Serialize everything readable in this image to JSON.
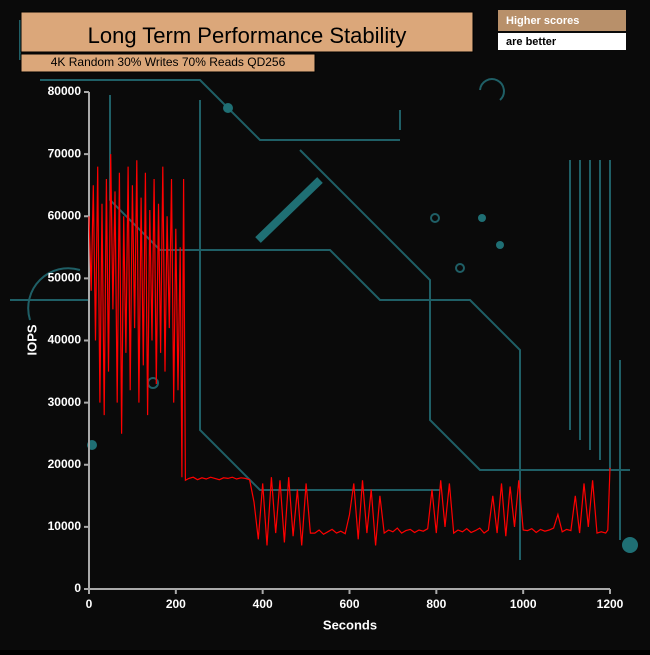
{
  "chart_data": {
    "type": "line",
    "title": "Long Term Performance Stability",
    "subtitle": "4K Random 30% Writes 70% Reads QD256",
    "annotations": [
      "Higher scores",
      "are better"
    ],
    "x_label": "Seconds",
    "y_label": "IOPS",
    "xlim": [
      0,
      1200
    ],
    "xticks": [
      0,
      200,
      400,
      600,
      800,
      1000,
      1200
    ],
    "ylim": [
      0,
      80000
    ],
    "yticks": [
      0,
      10000,
      20000,
      30000,
      40000,
      50000,
      60000,
      70000,
      80000
    ],
    "series": [
      {
        "name": "IOPS",
        "color": "#ff0000",
        "x": [
          0,
          5,
          10,
          15,
          20,
          25,
          30,
          35,
          40,
          45,
          50,
          55,
          60,
          65,
          70,
          75,
          80,
          85,
          90,
          95,
          100,
          105,
          110,
          115,
          120,
          125,
          130,
          135,
          140,
          145,
          150,
          155,
          160,
          165,
          170,
          175,
          180,
          185,
          190,
          195,
          200,
          205,
          210,
          214,
          218,
          222,
          230,
          240,
          250,
          260,
          270,
          280,
          290,
          300,
          310,
          320,
          330,
          340,
          350,
          360,
          370,
          380,
          390,
          400,
          410,
          420,
          430,
          440,
          450,
          460,
          470,
          480,
          490,
          500,
          510,
          520,
          530,
          540,
          550,
          560,
          570,
          580,
          590,
          600,
          610,
          620,
          630,
          640,
          650,
          660,
          670,
          680,
          690,
          700,
          710,
          720,
          730,
          740,
          750,
          760,
          770,
          780,
          790,
          800,
          810,
          820,
          830,
          840,
          850,
          860,
          870,
          880,
          890,
          900,
          910,
          920,
          930,
          940,
          950,
          960,
          970,
          980,
          990,
          1000,
          1010,
          1020,
          1030,
          1040,
          1050,
          1060,
          1070,
          1080,
          1090,
          1100,
          1110,
          1120,
          1130,
          1140,
          1150,
          1160,
          1170,
          1180,
          1190,
          1195,
          1200
        ],
        "values": [
          60000,
          48000,
          65000,
          40000,
          68000,
          30000,
          62000,
          28000,
          66000,
          35000,
          70000,
          45000,
          64000,
          30000,
          67000,
          25000,
          60000,
          38000,
          68000,
          32000,
          65000,
          42000,
          69000,
          30000,
          63000,
          36000,
          67000,
          28000,
          61000,
          40000,
          66000,
          33000,
          62000,
          38000,
          68000,
          35000,
          60000,
          42000,
          66000,
          30000,
          58000,
          32000,
          55000,
          18000,
          66000,
          17500,
          17800,
          18000,
          17600,
          17900,
          17700,
          18000,
          17800,
          17600,
          17900,
          17800,
          18000,
          17700,
          17900,
          17800,
          17600,
          14000,
          8000,
          17000,
          7000,
          18000,
          9000,
          17500,
          7500,
          18000,
          8500,
          16000,
          7000,
          17000,
          9000,
          9000,
          9500,
          8800,
          9200,
          9600,
          9000,
          9300,
          8900,
          12000,
          17000,
          8000,
          17500,
          9000,
          16000,
          7000,
          15000,
          9000,
          9500,
          9200,
          9800,
          9000,
          9400,
          9600,
          9100,
          9500,
          9300,
          9700,
          16000,
          9000,
          17500,
          10000,
          17000,
          9000,
          9500,
          9200,
          9700,
          9100,
          9400,
          9800,
          9000,
          9500,
          15000,
          9000,
          17000,
          8500,
          16500,
          10000,
          17500,
          9500,
          9400,
          9700,
          9100,
          9600,
          9300,
          9500,
          9800,
          12000,
          9200,
          9600,
          9400,
          15000,
          9000,
          17000,
          10000,
          17500,
          9000,
          9200,
          9000,
          9500,
          19500
        ]
      }
    ]
  }
}
